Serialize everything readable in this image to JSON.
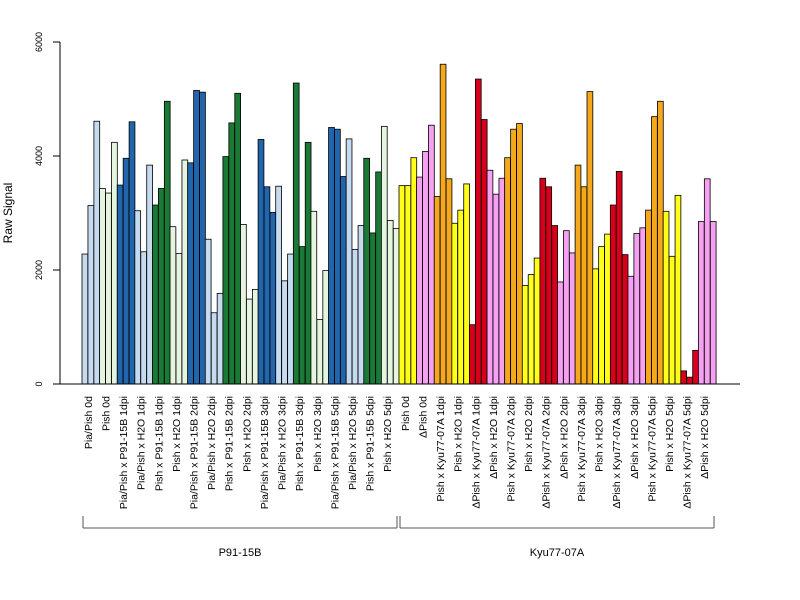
{
  "chart_data": {
    "type": "bar",
    "ylabel": "Raw Signal",
    "ylim": [
      0,
      6000
    ],
    "yticks": [
      0,
      2000,
      4000,
      6000
    ],
    "grid": false,
    "groups": [
      {
        "label": "P91-15B",
        "from": 0,
        "to": 17
      },
      {
        "label": "Kyu77-07A",
        "from": 18,
        "to": 35
      }
    ],
    "categories": [
      "Pia/Pish 0d",
      "Pish 0d",
      "Pia/Pish x P91-15B 1dpi",
      "Pia/Pish x H2O 1dpi",
      "Pish x P91-15B 1dpi",
      "Pish x H2O 1dpi",
      "Pia/Pish x P91-15B 2dpi",
      "Pia/Pish x H2O 2dpi",
      "Pish x P91-15B 2dpi",
      "Pish x H2O 2dpi",
      "Pia/Pish x P91-15B 3dpi",
      "Pia/Pish x H2O 3dpi",
      "Pish x P91-15B 3dpi",
      "Pish x H2O 3dpi",
      "Pia/Pish x P91-15B 5dpi",
      "Pia/Pish x H2O 5dpi",
      "Pish x P91-15B 5dpi",
      "Pish x H2O 5dpi",
      "Pish 0d",
      "ΔPish 0d",
      "Pish x Kyu77-07A 1dpi",
      "Pish x H2O 1dpi",
      "ΔPish x Kyu77-07A 1dpi",
      "ΔPish x H2O 1dpi",
      "Pish x Kyu77-07A 2dpi",
      "Pish x H2O 2dpi",
      "ΔPish x Kyu77-07A 2dpi",
      "ΔPish x H2O 2dpi",
      "Pish x Kyu77-07A 3dpi",
      "Pish x H2O 3dpi",
      "ΔPish x Kyu77-07A 3dpi",
      "ΔPish x H2O 3dpi",
      "Pish x Kyu77-07A 5dpi",
      "Pish x H2O 5dpi",
      "ΔPish x Kyu77-07A 5dpi",
      "ΔPish x H2O 5dpi"
    ],
    "colors": [
      "#c6dbef",
      "#e5f5e0",
      "#2166ac",
      "#c6dbef",
      "#1a7a35",
      "#e5f5e0",
      "#2166ac",
      "#c6dbef",
      "#1a7a35",
      "#e5f5e0",
      "#2166ac",
      "#c6dbef",
      "#1a7a35",
      "#e5f5e0",
      "#2166ac",
      "#c6dbef",
      "#1a7a35",
      "#e5f5e0",
      "#ffff1a",
      "#f5a0f0",
      "#f5a81c",
      "#ffff1a",
      "#d7001b",
      "#f5a0f0",
      "#f5a81c",
      "#ffff1a",
      "#d7001b",
      "#f5a0f0",
      "#f5a81c",
      "#ffff1a",
      "#d7001b",
      "#f5a0f0",
      "#f5a81c",
      "#ffff1a",
      "#d7001b",
      "#f5a0f0"
    ],
    "values": [
      [
        2280,
        3130,
        4610
      ],
      [
        3430,
        3350,
        4240
      ],
      [
        3490,
        3960,
        4600
      ],
      [
        3040,
        2320,
        3840
      ],
      [
        3140,
        3430,
        4960
      ],
      [
        2760,
        2290,
        3930
      ],
      [
        3880,
        5150,
        5120
      ],
      [
        2540,
        1250,
        1590
      ],
      [
        3990,
        4580,
        5100
      ],
      [
        2800,
        1490,
        1660
      ],
      [
        4290,
        3460,
        3010
      ],
      [
        3470,
        1810,
        2280
      ],
      [
        5280,
        2410,
        4240
      ],
      [
        3030,
        1130,
        1990
      ],
      [
        4500,
        4470,
        3640
      ],
      [
        4300,
        2360,
        2780
      ],
      [
        3960,
        2650,
        3720
      ],
      [
        4520,
        2870,
        2730
      ],
      [
        3480,
        3480,
        3970
      ],
      [
        3630,
        4080,
        4540
      ],
      [
        3290,
        5610,
        3600
      ],
      [
        2820,
        3050,
        3510
      ],
      [
        1040,
        5350,
        4640
      ],
      [
        3750,
        3330,
        3610
      ],
      [
        3970,
        4470,
        4570
      ],
      [
        1730,
        1920,
        2210
      ],
      [
        3610,
        3460,
        2780
      ],
      [
        1790,
        2690,
        2300
      ],
      [
        3840,
        3460,
        5130
      ],
      [
        2020,
        2410,
        2630
      ],
      [
        3140,
        3730,
        2270
      ],
      [
        1890,
        2640,
        2740
      ],
      [
        3050,
        4690,
        4960
      ],
      [
        3030,
        2240,
        3310
      ],
      [
        230,
        120,
        590
      ],
      [
        2850,
        3600,
        2850
      ]
    ]
  }
}
